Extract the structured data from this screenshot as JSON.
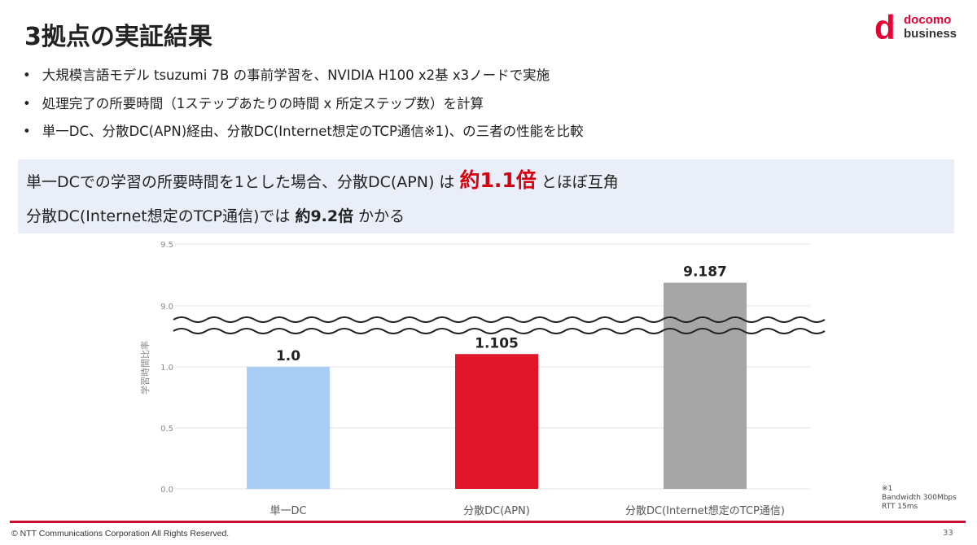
{
  "title": "3拠点の実証結果",
  "logo": {
    "mark": "d",
    "line1": "docomo",
    "line2": "business"
  },
  "bullets": [
    "大規模言語モデル tsuzumi 7B の事前学習を、NVIDIA H100 x2基 x3ノードで実施",
    "処理完了の所要時間（1ステップあたりの時間 x 所定ステップ数）を計算",
    "単一DC、分散DC(APN)経由、分散DC(Internet想定のTCP通信※1)、の三者の性能を比較"
  ],
  "highlight": {
    "l1_a": "単一DCでの学習の所要時間を1とした場合、分散DC(APN) は ",
    "l1_b": "約1.1倍",
    "l1_c": " とほぼ互角",
    "l2_a": "分散DC(Internet想定のTCP通信)では ",
    "l2_b": "約9.2倍",
    "l2_c": " かかる"
  },
  "chart_data": {
    "type": "bar",
    "ylabel": "学習時間比率",
    "categories": [
      "単一DC",
      "分散DC(APN)",
      "分散DC(Internet想定のTCP通信)"
    ],
    "values": [
      1.0,
      1.105,
      9.187
    ],
    "data_labels": [
      "1.0",
      "1.105",
      "9.187"
    ],
    "colors": [
      "#a9cdf5",
      "#e0162b",
      "#a6a6a6"
    ],
    "axis_break": true,
    "lower_ticks": [
      "0.0",
      "0.5",
      "1.0"
    ],
    "upper_ticks": [
      "9.0",
      "9.5"
    ],
    "ylim_lower": [
      0,
      1.0
    ],
    "ylim_upper": [
      9.0,
      9.5
    ]
  },
  "note": {
    "mark": "※1",
    "line1": "Bandwidth 300Mbps",
    "line2": "RTT 15ms"
  },
  "footer": {
    "copyright": "© NTT Communications Corporation All Rights Reserved.",
    "page": "33"
  }
}
